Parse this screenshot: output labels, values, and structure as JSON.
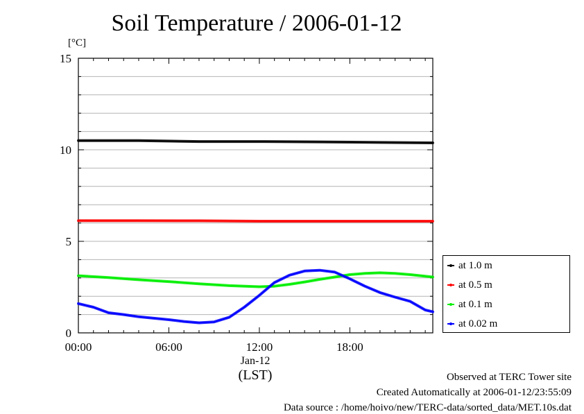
{
  "chart_data": {
    "type": "line",
    "title": "Soil Temperature / 2006-01-12",
    "ylabel": "[°C]",
    "xlabel": "(LST)",
    "date_label": "Jan-12",
    "ylim": [
      0,
      15
    ],
    "xlim": [
      0,
      23.5
    ],
    "yticks": [
      0,
      5,
      10,
      15
    ],
    "xticks": [
      {
        "value": 0,
        "label": "00:00"
      },
      {
        "value": 6,
        "label": "06:00"
      },
      {
        "value": 12,
        "label": "12:00"
      },
      {
        "value": 18,
        "label": "18:00"
      }
    ],
    "grid": true,
    "legend_position": "right",
    "series": [
      {
        "name": "at 1.0 m",
        "color": "#000000",
        "x": [
          0,
          4,
          8,
          12,
          16,
          20,
          23.5
        ],
        "y": [
          10.5,
          10.5,
          10.45,
          10.45,
          10.43,
          10.4,
          10.38
        ]
      },
      {
        "name": "at 0.5 m",
        "color": "#ff0000",
        "x": [
          0,
          4,
          8,
          12,
          16,
          20,
          23.5
        ],
        "y": [
          6.13,
          6.13,
          6.12,
          6.1,
          6.1,
          6.1,
          6.1
        ]
      },
      {
        "name": "at 0.1 m",
        "color": "#00ee00",
        "x": [
          0,
          2,
          4,
          6,
          8,
          10,
          12,
          13,
          14,
          15,
          16,
          17,
          18,
          19,
          20,
          21,
          22,
          23.5
        ],
        "y": [
          3.12,
          3.02,
          2.9,
          2.8,
          2.68,
          2.58,
          2.52,
          2.55,
          2.65,
          2.78,
          2.92,
          3.05,
          3.18,
          3.25,
          3.28,
          3.25,
          3.18,
          3.05
        ]
      },
      {
        "name": "at 0.02 m",
        "color": "#0000ff",
        "x": [
          0,
          1,
          2,
          3,
          4,
          5,
          6,
          7,
          8,
          9,
          10,
          11,
          12,
          13,
          14,
          15,
          16,
          17,
          18,
          19,
          20,
          21,
          22,
          23,
          23.5
        ],
        "y": [
          1.6,
          1.4,
          1.1,
          1.0,
          0.88,
          0.8,
          0.72,
          0.62,
          0.55,
          0.6,
          0.85,
          1.4,
          2.05,
          2.75,
          3.15,
          3.38,
          3.42,
          3.32,
          2.95,
          2.55,
          2.2,
          1.95,
          1.72,
          1.25,
          1.15
        ]
      }
    ]
  },
  "footer": {
    "observed": "Observed at TERC Tower site",
    "created": "Created Automatically at 2006-01-12/23:55:09",
    "source": "Data source : /home/hoivo/new/TERC-data/sorted_data/MET.10s.dat"
  }
}
